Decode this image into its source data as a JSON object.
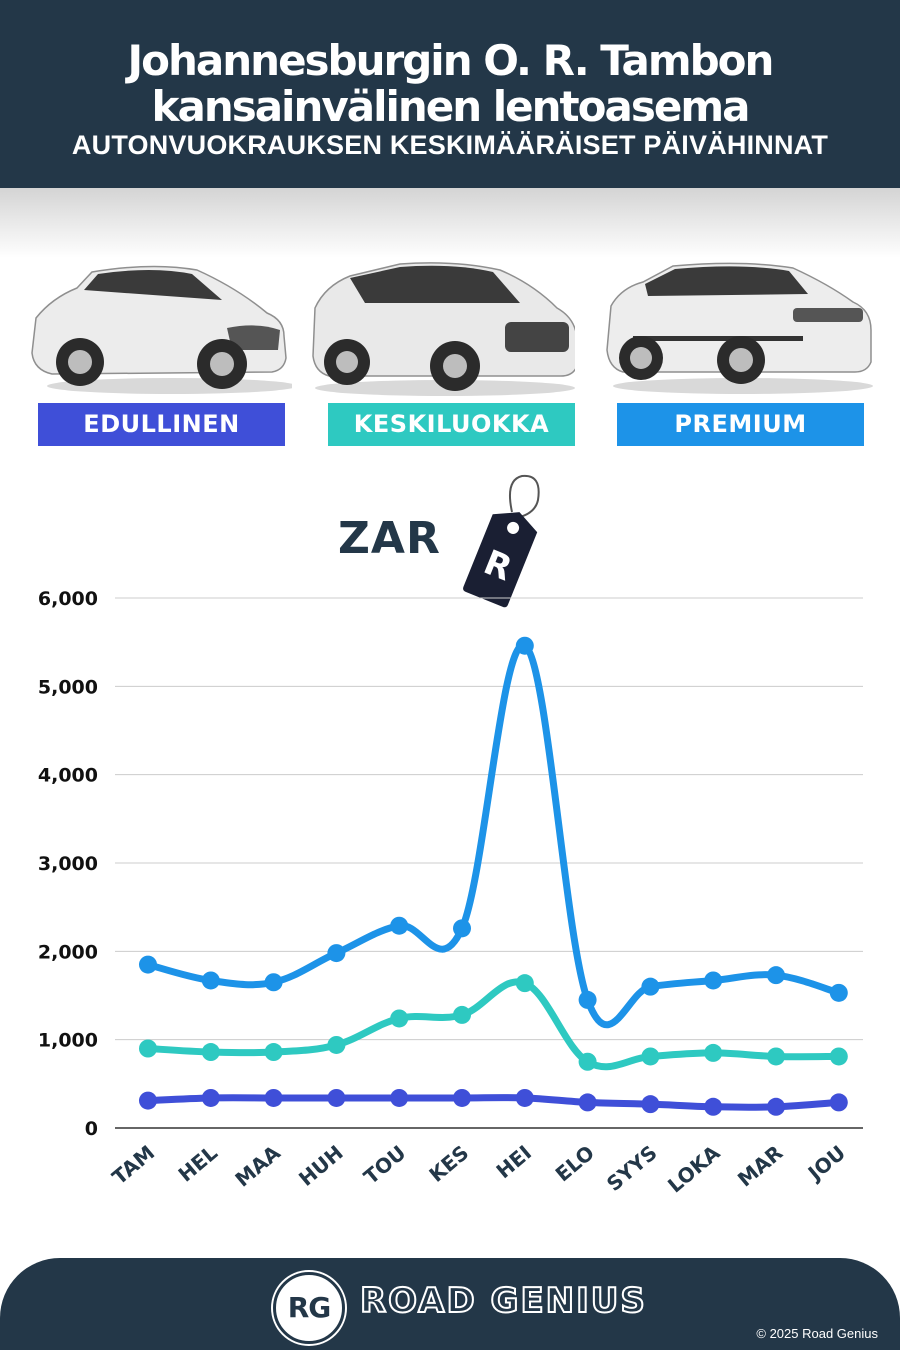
{
  "header": {
    "title_line1": "Johannesburgin O. R. Tambon",
    "title_line2": "kansainvälinen lentoasema",
    "subtitle": "AUTONVUOKRAUKSEN KESKIMÄÄRÄISET PÄIVÄHINNAT",
    "background": "#233748"
  },
  "categories": [
    {
      "label": "EDULLINEN",
      "color": "#3f4fd8",
      "car_icon": "hatchback-car-icon"
    },
    {
      "label": "KESKILUOKKA",
      "color": "#2ec9c1",
      "car_icon": "suv-car-icon"
    },
    {
      "label": "PREMIUM",
      "color": "#1d93e8",
      "car_icon": "luxury-suv-car-icon"
    }
  ],
  "currency": {
    "label": "ZAR",
    "tag_symbol": "R",
    "icon": "price-tag-icon"
  },
  "chart_data": {
    "type": "line",
    "categories": [
      "TAM",
      "HEL",
      "MAA",
      "HUH",
      "TOU",
      "KES",
      "HEI",
      "ELO",
      "SYYS",
      "LOKA",
      "MAR",
      "JOU"
    ],
    "series": [
      {
        "name": "PREMIUM",
        "color": "#1d93e8",
        "values": [
          1850,
          1670,
          1650,
          1980,
          2290,
          2260,
          5460,
          1450,
          1600,
          1670,
          1730,
          1530
        ]
      },
      {
        "name": "KESKILUOKKA",
        "color": "#2ec9c1",
        "values": [
          900,
          860,
          860,
          940,
          1240,
          1280,
          1640,
          750,
          810,
          850,
          810,
          810
        ]
      },
      {
        "name": "EDULLINEN",
        "color": "#3f4fd8",
        "values": [
          310,
          340,
          340,
          340,
          340,
          340,
          340,
          290,
          270,
          240,
          240,
          290
        ]
      }
    ],
    "ylim": [
      0,
      6000
    ],
    "yticks": [
      0,
      1000,
      2000,
      3000,
      4000,
      5000,
      6000
    ],
    "ytick_labels": [
      "0",
      "1,000",
      "2,000",
      "3,000",
      "4,000",
      "5,000",
      "6,000"
    ],
    "grid": true,
    "legend": "none"
  },
  "footer": {
    "logo_text": "RG",
    "brand": "ROAD GENIUS",
    "copyright": "© 2025 Road Genius"
  }
}
